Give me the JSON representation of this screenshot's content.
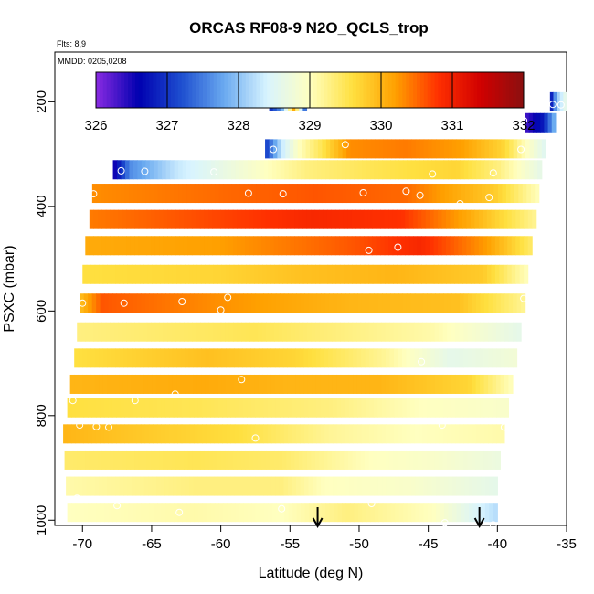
{
  "chart_data": {
    "type": "heatmap",
    "title": "ORCAS RF08-9 N2O_QCLS_trop",
    "note_flights": "Flts: 8,9",
    "note_dates": "MMDD: 0205,0208",
    "xlabel": "Latitude (deg N)",
    "ylabel": "PSXC (mbar)",
    "xlim": [
      -72,
      -35
    ],
    "ylim": [
      1010,
      105
    ],
    "x_ticks": [
      -70,
      -65,
      -60,
      -55,
      -50,
      -45,
      -40,
      -35
    ],
    "x_tick_labels": [
      "-70",
      "-65",
      "-60",
      "-55",
      "-50",
      "-45",
      "-40",
      "-35"
    ],
    "y_ticks": [
      200,
      400,
      600,
      800,
      1000
    ],
    "y_tick_labels": [
      "200",
      "400",
      "600",
      "800",
      "1000"
    ],
    "colorbar": {
      "min": 326,
      "max": 332,
      "ticks": [
        326,
        327,
        328,
        329,
        330,
        331,
        332
      ],
      "tick_labels": [
        "326",
        "327",
        "328",
        "329",
        "330",
        "331",
        "332"
      ],
      "colors": [
        "#8a2be2",
        "#0000b0",
        "#1e4fd0",
        "#6aaaf0",
        "#d8f4ff",
        "#ffffc0",
        "#ffe040",
        "#ffa000",
        "#ff3000",
        "#d00000",
        "#8a1010"
      ]
    },
    "bands": [
      {
        "p": 200,
        "x0": -56.5,
        "x1": -53.8,
        "profile": [
          [
            0,
            326.9
          ],
          [
            0.3,
            327.6
          ],
          [
            0.5,
            328.8
          ],
          [
            0.65,
            330.1
          ],
          [
            0.8,
            328.9
          ],
          [
            1,
            327.0
          ]
        ]
      },
      {
        "p": 200,
        "x0": -36.2,
        "x1": -35.0,
        "profile": [
          [
            0,
            326.5
          ],
          [
            0.4,
            328.0
          ],
          [
            1,
            328.7
          ]
        ]
      },
      {
        "p": 240,
        "x0": -38.0,
        "x1": -35.8,
        "profile": [
          [
            0,
            326.3
          ],
          [
            0.6,
            326.8
          ],
          [
            1,
            328.0
          ]
        ]
      },
      {
        "p": 290,
        "x0": -56.8,
        "x1": -36.5,
        "profile": [
          [
            0,
            327.0
          ],
          [
            0.06,
            328.3
          ],
          [
            0.12,
            329.0
          ],
          [
            0.2,
            329.5
          ],
          [
            0.3,
            330.3
          ],
          [
            0.5,
            330.4
          ],
          [
            0.7,
            330.2
          ],
          [
            0.85,
            329.7
          ],
          [
            0.93,
            329.0
          ],
          [
            1,
            328.5
          ]
        ]
      },
      {
        "p": 330,
        "x0": -67.8,
        "x1": -36.8,
        "profile": [
          [
            0,
            326.4
          ],
          [
            0.04,
            327.6
          ],
          [
            0.15,
            328.3
          ],
          [
            0.3,
            328.8
          ],
          [
            0.45,
            329.3
          ],
          [
            0.6,
            329.5
          ],
          [
            0.8,
            329.7
          ],
          [
            0.9,
            329.3
          ],
          [
            1,
            328.6
          ]
        ]
      },
      {
        "p": 375,
        "x0": -69.3,
        "x1": -37.0,
        "profile": [
          [
            0,
            330.3
          ],
          [
            0.3,
            330.5
          ],
          [
            0.5,
            330.6
          ],
          [
            0.7,
            330.5
          ],
          [
            0.9,
            329.8
          ],
          [
            1,
            329.0
          ]
        ]
      },
      {
        "p": 425,
        "x0": -69.5,
        "x1": -37.2,
        "profile": [
          [
            0,
            330.4
          ],
          [
            0.3,
            330.7
          ],
          [
            0.5,
            330.9
          ],
          [
            0.7,
            330.8
          ],
          [
            0.85,
            330.1
          ],
          [
            1,
            329.2
          ]
        ]
      },
      {
        "p": 475,
        "x0": -69.8,
        "x1": -37.5,
        "profile": [
          [
            0,
            330.1
          ],
          [
            0.3,
            330.2
          ],
          [
            0.6,
            330.6
          ],
          [
            0.75,
            330.9
          ],
          [
            0.9,
            330.2
          ],
          [
            1,
            329.4
          ]
        ]
      },
      {
        "p": 530,
        "x0": -70.0,
        "x1": -37.8,
        "profile": [
          [
            0,
            329.6
          ],
          [
            0.3,
            329.7
          ],
          [
            0.5,
            329.9
          ],
          [
            0.7,
            330.0
          ],
          [
            0.9,
            329.8
          ],
          [
            1,
            329.0
          ]
        ]
      },
      {
        "p": 585,
        "x0": -70.2,
        "x1": -38.0,
        "profile": [
          [
            0,
            329.9
          ],
          [
            0.05,
            330.6
          ],
          [
            0.3,
            330.3
          ],
          [
            0.6,
            330.0
          ],
          [
            0.85,
            329.9
          ],
          [
            1,
            329.2
          ]
        ]
      },
      {
        "p": 640,
        "x0": -70.4,
        "x1": -38.3,
        "profile": [
          [
            0,
            329.3
          ],
          [
            0.2,
            329.4
          ],
          [
            0.4,
            329.5
          ],
          [
            0.6,
            329.3
          ],
          [
            0.8,
            329.1
          ],
          [
            1,
            328.6
          ]
        ]
      },
      {
        "p": 690,
        "x0": -70.6,
        "x1": -38.6,
        "profile": [
          [
            0,
            329.6
          ],
          [
            0.3,
            329.9
          ],
          [
            0.5,
            329.7
          ],
          [
            0.7,
            329.2
          ],
          [
            0.85,
            328.6
          ],
          [
            1,
            328.8
          ]
        ]
      },
      {
        "p": 740,
        "x0": -70.9,
        "x1": -38.9,
        "profile": [
          [
            0,
            330.0
          ],
          [
            0.3,
            330.1
          ],
          [
            0.5,
            330.0
          ],
          [
            0.7,
            330.0
          ],
          [
            0.9,
            329.7
          ],
          [
            1,
            329.0
          ]
        ]
      },
      {
        "p": 785,
        "x0": -71.1,
        "x1": -39.2,
        "profile": [
          [
            0,
            329.6
          ],
          [
            0.3,
            329.5
          ],
          [
            0.6,
            329.3
          ],
          [
            0.8,
            329.0
          ],
          [
            1,
            328.9
          ]
        ]
      },
      {
        "p": 835,
        "x0": -71.4,
        "x1": -39.5,
        "profile": [
          [
            0,
            330.0
          ],
          [
            0.2,
            329.8
          ],
          [
            0.4,
            329.6
          ],
          [
            0.6,
            329.2
          ],
          [
            0.8,
            329.0
          ],
          [
            1,
            329.1
          ]
        ]
      },
      {
        "p": 885,
        "x0": -71.3,
        "x1": -39.8,
        "profile": [
          [
            0,
            329.4
          ],
          [
            0.3,
            329.5
          ],
          [
            0.5,
            329.4
          ],
          [
            0.7,
            329.0
          ],
          [
            0.85,
            328.9
          ],
          [
            1,
            328.7
          ]
        ]
      },
      {
        "p": 935,
        "x0": -71.2,
        "x1": -40.0,
        "profile": [
          [
            0,
            329.1
          ],
          [
            0.3,
            329.3
          ],
          [
            0.5,
            329.3
          ],
          [
            0.6,
            329.0
          ],
          [
            0.8,
            328.9
          ],
          [
            1,
            328.6
          ]
        ]
      },
      {
        "p": 985,
        "x0": -71.1,
        "x1": -40.0,
        "profile": [
          [
            0,
            329.0
          ],
          [
            0.3,
            329.1
          ],
          [
            0.5,
            329.0
          ],
          [
            0.65,
            329.3
          ],
          [
            0.85,
            329.0
          ],
          [
            1,
            328.2
          ]
        ]
      }
    ],
    "points": [
      [
        -55.2,
        202
      ],
      [
        -55.7,
        204
      ],
      [
        -36.0,
        205
      ],
      [
        -35.4,
        206
      ],
      [
        -38.1,
        236
      ],
      [
        -56.2,
        291
      ],
      [
        -51.0,
        282
      ],
      [
        -38.3,
        291
      ],
      [
        -67.2,
        332
      ],
      [
        -65.5,
        333
      ],
      [
        -60.5,
        334
      ],
      [
        -44.7,
        338
      ],
      [
        -40.3,
        336
      ],
      [
        -69.2,
        376
      ],
      [
        -58.0,
        375
      ],
      [
        -55.5,
        376
      ],
      [
        -49.7,
        374
      ],
      [
        -46.6,
        371
      ],
      [
        -45.6,
        379
      ],
      [
        -42.7,
        395
      ],
      [
        -40.6,
        383
      ],
      [
        -49.3,
        484
      ],
      [
        -47.2,
        478
      ],
      [
        -70.0,
        585
      ],
      [
        -67.0,
        585
      ],
      [
        -62.8,
        582
      ],
      [
        -59.5,
        574
      ],
      [
        -60.0,
        598
      ],
      [
        -48.5,
        610
      ],
      [
        -38.1,
        576
      ],
      [
        -37.7,
        625
      ],
      [
        -45.5,
        697
      ],
      [
        -58.5,
        731
      ],
      [
        -63.3,
        759
      ],
      [
        -66.2,
        771
      ],
      [
        -70.7,
        771
      ],
      [
        -70.2,
        818
      ],
      [
        -69.0,
        821
      ],
      [
        -68.1,
        822
      ],
      [
        -57.5,
        843
      ],
      [
        -44.0,
        818
      ],
      [
        -39.5,
        822
      ],
      [
        -70.4,
        958
      ],
      [
        -67.5,
        972
      ],
      [
        -63.0,
        985
      ],
      [
        -55.6,
        978
      ],
      [
        -49.1,
        968
      ],
      [
        -43.8,
        1005
      ],
      [
        -40.3,
        1009
      ]
    ],
    "arrows_x": [
      -53.0,
      -41.3
    ]
  }
}
